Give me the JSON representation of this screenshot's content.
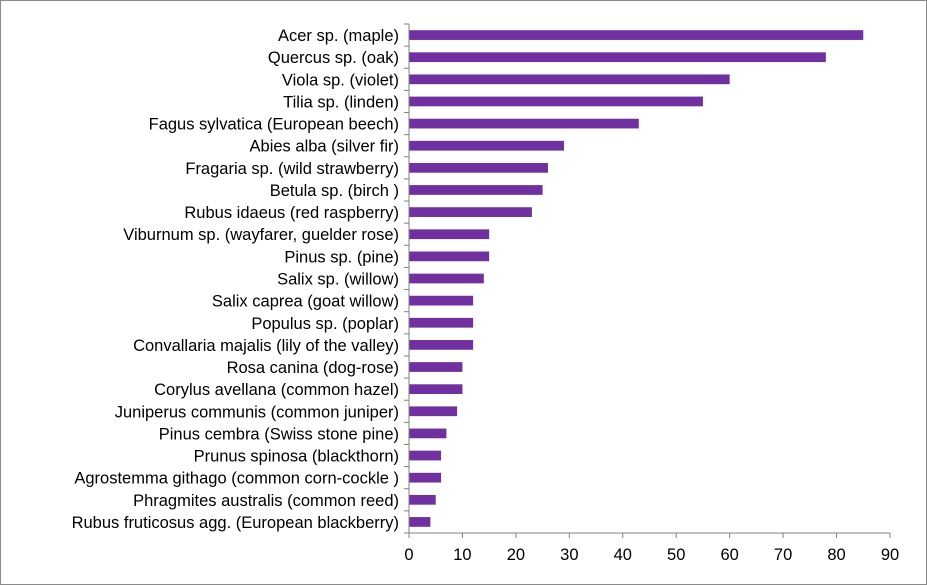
{
  "chart_data": {
    "type": "bar",
    "orientation": "horizontal",
    "title": "",
    "xlabel": "",
    "ylabel": "",
    "categories": [
      "Acer sp. (maple)",
      "Quercus sp. (oak)",
      "Viola sp. (violet)",
      "Tilia sp. (linden)",
      "Fagus sylvatica (European beech)",
      "Abies alba (silver fir)",
      "Fragaria sp. (wild strawberry)",
      "Betula sp. (birch )",
      "Rubus idaeus  (red raspberry)",
      "Viburnum sp. (wayfarer, guelder rose)",
      "Pinus sp. (pine)",
      "Salix sp. (willow)",
      "Salix caprea (goat willow)",
      "Populus sp. (poplar)",
      "Convallaria majalis (lily of the valley)",
      "Rosa canina (dog-rose)",
      "Corylus avellana (common hazel)",
      "Juniperus communis (common juniper)",
      "Pinus cembra (Swiss stone pine)",
      "Prunus spinosa (blackthorn)",
      "Agrostemma githago (common corn-cockle )",
      "Phragmites australis (common reed)",
      "Rubus fruticosus agg. (European blackberry)"
    ],
    "values": [
      85,
      78,
      60,
      55,
      43,
      29,
      26,
      25,
      23,
      15,
      15,
      14,
      12,
      12,
      12,
      10,
      10,
      9,
      7,
      6,
      6,
      5,
      4
    ],
    "xlim": [
      0,
      90
    ],
    "xticks": [
      0,
      10,
      20,
      30,
      40,
      50,
      60,
      70,
      80,
      90
    ],
    "grid": false,
    "legend": "none",
    "bar_color": "#7030A0",
    "axis_color": "#808080"
  }
}
